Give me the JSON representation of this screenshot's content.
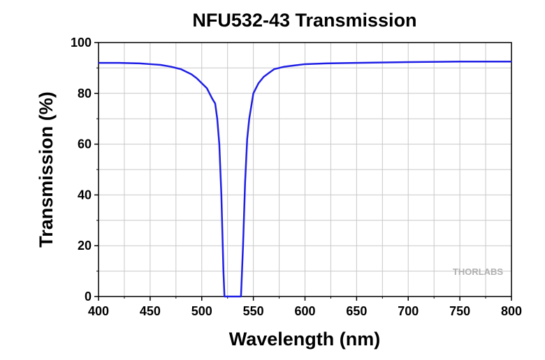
{
  "chart_data": {
    "type": "line",
    "title": "NFU532-43 Transmission",
    "x_label": "Wavelength (nm)",
    "y_label": "Transmission (%)",
    "watermark": "THORLABS",
    "color": "#1f1fe6",
    "x": [
      400,
      420,
      440,
      450,
      460,
      470,
      480,
      490,
      495,
      500,
      505,
      510,
      513,
      515,
      517,
      519,
      520,
      521,
      522,
      538,
      540,
      542,
      544,
      546,
      548,
      550,
      555,
      560,
      565,
      570,
      580,
      590,
      600,
      620,
      650,
      700,
      750,
      800
    ],
    "values": [
      92,
      92,
      91.8,
      91.5,
      91.2,
      90.5,
      89.5,
      87.5,
      86,
      84,
      82,
      78,
      76,
      70,
      60,
      40,
      25,
      10,
      0,
      0,
      20,
      45,
      62,
      70,
      75,
      80,
      84,
      86.5,
      88,
      89.5,
      90.5,
      91,
      91.5,
      91.8,
      92,
      92.3,
      92.5,
      92.5
    ],
    "xlim": [
      400,
      800
    ],
    "ylim": [
      0,
      100
    ],
    "xticks": [
      400,
      450,
      500,
      550,
      600,
      650,
      700,
      750,
      800
    ],
    "yticks": [
      0,
      20,
      40,
      60,
      80,
      100
    ],
    "xminor": [
      425,
      475,
      525,
      575,
      625,
      675,
      725,
      775
    ],
    "yminor": [
      10,
      30,
      50,
      70,
      90
    ],
    "grid": true
  }
}
